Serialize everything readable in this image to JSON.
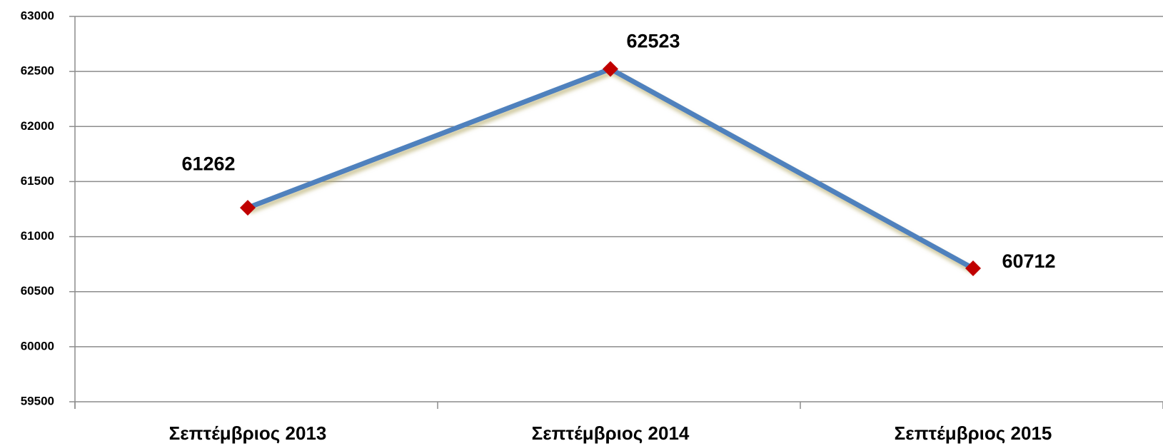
{
  "chart_data": {
    "type": "line",
    "categories": [
      "Σεπτέμβριος 2013",
      "Σεπτέμβριος 2014",
      "Σεπτέμβριος 2015"
    ],
    "values": [
      61262,
      62523,
      60712
    ],
    "color": "#4f81bd",
    "marker_color": "#c00000",
    "ylim": [
      59500,
      63000
    ],
    "yticks": [
      59500,
      60000,
      60500,
      61000,
      61500,
      62000,
      62500,
      63000
    ],
    "grid": true
  }
}
